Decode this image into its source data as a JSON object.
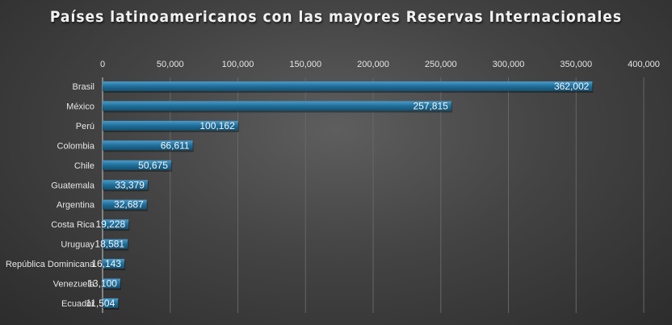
{
  "chart_data": {
    "type": "bar",
    "orientation": "horizontal",
    "title": "Países latinoamericanos con las mayores Reservas Internacionales",
    "categories": [
      "Brasil",
      "México",
      "Perú",
      "Colombia",
      "Chile",
      "Guatemala",
      "Argentina",
      "Costa Rica",
      "Uruguay",
      "República Dominicana",
      "Venezuela",
      "Ecuador"
    ],
    "values": [
      362002,
      257815,
      100162,
      66611,
      50675,
      33379,
      32687,
      19228,
      18581,
      16143,
      13100,
      11504
    ],
    "data_labels": [
      "362,002",
      "257,815",
      "100,162",
      "66,611",
      "50,675",
      "33,379",
      "32,687",
      "19,228",
      "18,581",
      "16,143",
      "13,100",
      "11,504"
    ],
    "xaxis": {
      "position": "top",
      "range": [
        0,
        400000
      ],
      "ticks": [
        "0",
        "50,000",
        "100,000",
        "150,000",
        "200,000",
        "250,000",
        "300,000",
        "350,000",
        "400,000"
      ]
    },
    "grid": true,
    "legend": "none",
    "colors": {
      "bar": "#1f6e99",
      "bar_highlight": "#3a8fbd",
      "background": "#444444",
      "grid": "#6a6a6a",
      "text": "#e6e6e6"
    }
  }
}
